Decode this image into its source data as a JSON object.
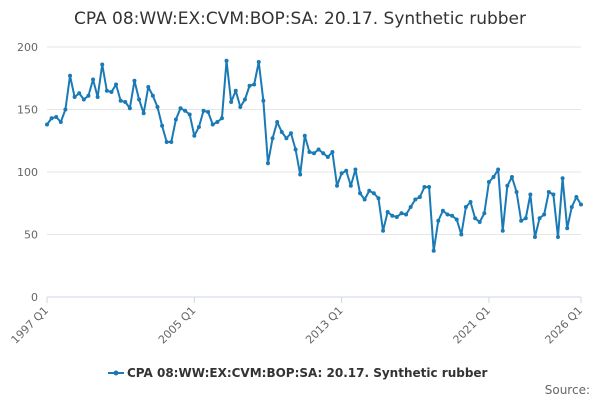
{
  "chart_data": {
    "type": "line",
    "title": "CPA 08:WW:EX:CVM:BOP:SA: 20.17. Synthetic rubber",
    "xlabel": "",
    "ylabel": "",
    "ylim": [
      0,
      200
    ],
    "y_ticks": [
      0,
      50,
      100,
      150,
      200
    ],
    "x_ticks": [
      "1997 Q1",
      "2005 Q1",
      "2013 Q1",
      "2021 Q1",
      "2026 Q1"
    ],
    "x_start": "1997 Q1",
    "grid": true,
    "legend_position": "bottom",
    "source_label": "Source:",
    "colors": {
      "series": "#1a7ab5",
      "grid": "#e6e6e6",
      "axis": "#ccd6eb"
    },
    "series": [
      {
        "name": "CPA 08:WW:EX:CVM:BOP:SA: 20.17. Synthetic rubber",
        "values": [
          138,
          143,
          144,
          140,
          150,
          177,
          160,
          163,
          158,
          161,
          174,
          160,
          186,
          165,
          164,
          170,
          157,
          156,
          151,
          173,
          158,
          147,
          168,
          161,
          152,
          137,
          124,
          124,
          142,
          151,
          149,
          146,
          129,
          136,
          149,
          148,
          138,
          140,
          143,
          189,
          156,
          165,
          152,
          158,
          169,
          170,
          188,
          157,
          107,
          127,
          140,
          132,
          127,
          131,
          118,
          98,
          129,
          116,
          115,
          118,
          115,
          112,
          116,
          89,
          99,
          101,
          89,
          102,
          83,
          78,
          85,
          83,
          79,
          53,
          68,
          65,
          64,
          67,
          66,
          72,
          78,
          80,
          88,
          88,
          37,
          61,
          69,
          66,
          65,
          62,
          50,
          72,
          76,
          63,
          60,
          67,
          92,
          96,
          102,
          53,
          89,
          96,
          84,
          61,
          63,
          82,
          48,
          63,
          66,
          84,
          82,
          48,
          95,
          55,
          72,
          80,
          74
        ]
      }
    ]
  }
}
